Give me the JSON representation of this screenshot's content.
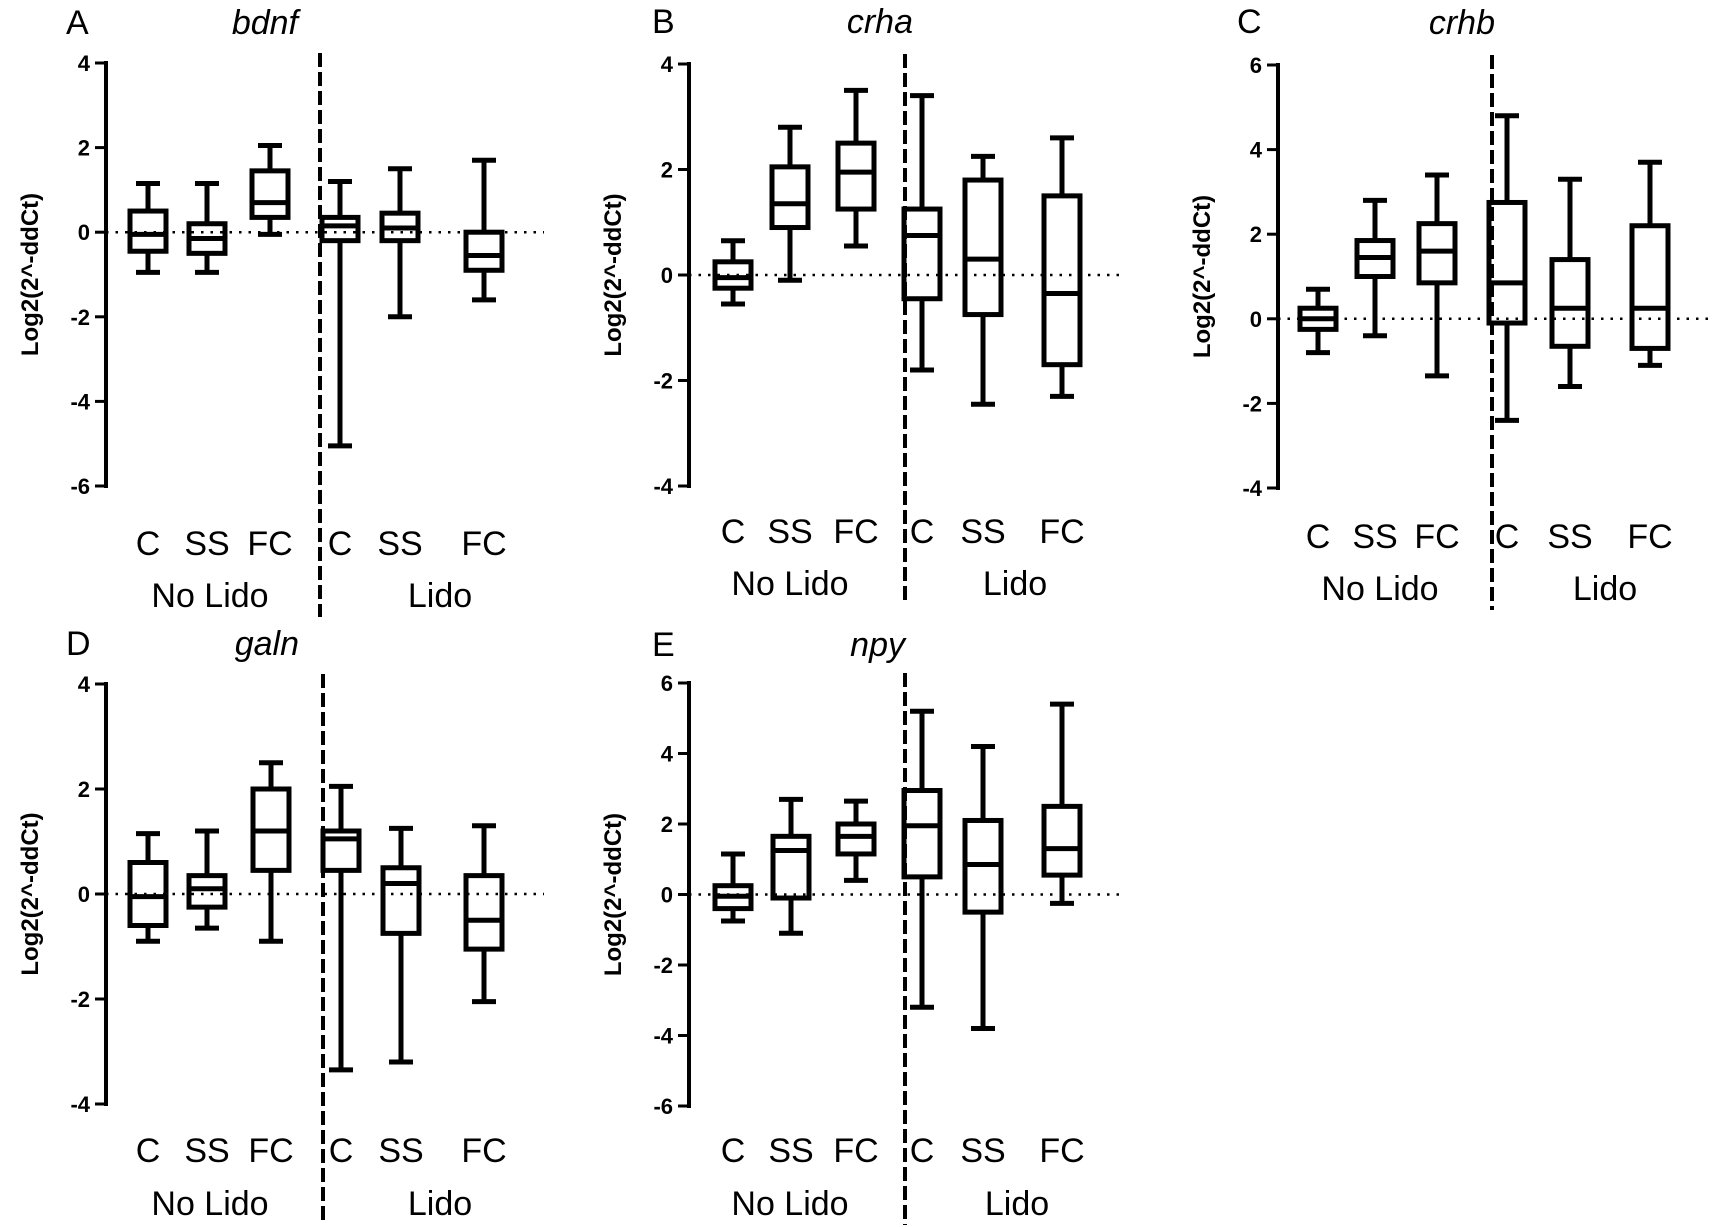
{
  "figure": {
    "ylabel": "Log2(2^-ddCt)",
    "categories": [
      "C",
      "SS",
      "FC",
      "C",
      "SS",
      "FC"
    ],
    "groups": [
      "No Lido",
      "Lido"
    ]
  },
  "chart_data": [
    {
      "type": "boxplot",
      "panel": "A",
      "title": "bdnf",
      "ylabel": "Log2(2^-ddCt)",
      "ylim": [
        -6,
        4
      ],
      "yticks": [
        -6,
        -4,
        -2,
        0,
        2,
        4
      ],
      "reference_line": 0,
      "categories": [
        "C",
        "SS",
        "FC",
        "C",
        "SS",
        "FC"
      ],
      "groups": [
        {
          "label": "No Lido",
          "categories": 3
        },
        {
          "label": "Lido",
          "categories": 3
        }
      ],
      "boxes": [
        {
          "min": -0.95,
          "q1": -0.45,
          "median": -0.05,
          "q3": 0.5,
          "max": 1.15
        },
        {
          "min": -0.95,
          "q1": -0.5,
          "median": -0.15,
          "q3": 0.2,
          "max": 1.15
        },
        {
          "min": -0.05,
          "q1": 0.35,
          "median": 0.7,
          "q3": 1.45,
          "max": 2.05
        },
        {
          "min": -5.05,
          "q1": -0.2,
          "median": 0.15,
          "q3": 0.35,
          "max": 1.2
        },
        {
          "min": -2.0,
          "q1": -0.2,
          "median": 0.1,
          "q3": 0.45,
          "max": 1.5
        },
        {
          "min": -1.6,
          "q1": -0.9,
          "median": -0.55,
          "q3": 0.0,
          "max": 1.7
        }
      ]
    },
    {
      "type": "boxplot",
      "panel": "B",
      "title": "crha",
      "ylabel": "Log2(2^-ddCt)",
      "ylim": [
        -4,
        4
      ],
      "yticks": [
        -4,
        -2,
        0,
        2,
        4
      ],
      "reference_line": 0,
      "categories": [
        "C",
        "SS",
        "FC",
        "C",
        "SS",
        "FC"
      ],
      "groups": [
        {
          "label": "No Lido",
          "categories": 3
        },
        {
          "label": "Lido",
          "categories": 3
        }
      ],
      "boxes": [
        {
          "min": -0.55,
          "q1": -0.25,
          "median": -0.05,
          "q3": 0.25,
          "max": 0.65
        },
        {
          "min": -0.1,
          "q1": 0.9,
          "median": 1.35,
          "q3": 2.05,
          "max": 2.8
        },
        {
          "min": 0.55,
          "q1": 1.25,
          "median": 1.95,
          "q3": 2.5,
          "max": 3.5
        },
        {
          "min": -1.8,
          "q1": -0.45,
          "median": 0.75,
          "q3": 1.25,
          "max": 3.4
        },
        {
          "min": -2.45,
          "q1": -0.75,
          "median": 0.3,
          "q3": 1.8,
          "max": 2.25
        },
        {
          "min": -2.3,
          "q1": -1.7,
          "median": -0.35,
          "q3": 1.5,
          "max": 2.6
        }
      ]
    },
    {
      "type": "boxplot",
      "panel": "C",
      "title": "crhb",
      "ylabel": "Log2(2^-ddCt)",
      "ylim": [
        -4,
        6
      ],
      "yticks": [
        -4,
        -2,
        0,
        2,
        4,
        6
      ],
      "reference_line": 0,
      "categories": [
        "C",
        "SS",
        "FC",
        "C",
        "SS",
        "FC"
      ],
      "groups": [
        {
          "label": "No Lido",
          "categories": 3
        },
        {
          "label": "Lido",
          "categories": 3
        }
      ],
      "boxes": [
        {
          "min": -0.8,
          "q1": -0.25,
          "median": 0.0,
          "q3": 0.25,
          "max": 0.7
        },
        {
          "min": -0.4,
          "q1": 1.0,
          "median": 1.45,
          "q3": 1.85,
          "max": 2.8
        },
        {
          "min": -1.35,
          "q1": 0.85,
          "median": 1.6,
          "q3": 2.25,
          "max": 3.4
        },
        {
          "min": -2.4,
          "q1": -0.1,
          "median": 0.85,
          "q3": 2.75,
          "max": 4.8
        },
        {
          "min": -1.6,
          "q1": -0.65,
          "median": 0.25,
          "q3": 1.4,
          "max": 3.3
        },
        {
          "min": -1.1,
          "q1": -0.7,
          "median": 0.25,
          "q3": 2.2,
          "max": 3.7
        }
      ]
    },
    {
      "type": "boxplot",
      "panel": "D",
      "title": "galn",
      "ylabel": "Log2(2^-ddCt)",
      "ylim": [
        -4,
        4
      ],
      "yticks": [
        -4,
        -2,
        0,
        2,
        4
      ],
      "reference_line": 0,
      "categories": [
        "C",
        "SS",
        "FC",
        "C",
        "SS",
        "FC"
      ],
      "groups": [
        {
          "label": "No Lido",
          "categories": 3
        },
        {
          "label": "Lido",
          "categories": 3
        }
      ],
      "boxes": [
        {
          "min": -0.9,
          "q1": -0.6,
          "median": -0.05,
          "q3": 0.6,
          "max": 1.15
        },
        {
          "min": -0.65,
          "q1": -0.25,
          "median": 0.1,
          "q3": 0.35,
          "max": 1.2
        },
        {
          "min": -0.9,
          "q1": 0.45,
          "median": 1.2,
          "q3": 2.0,
          "max": 2.5
        },
        {
          "min": -3.35,
          "q1": 0.45,
          "median": 1.05,
          "q3": 1.2,
          "max": 2.05
        },
        {
          "min": -3.2,
          "q1": -0.75,
          "median": 0.2,
          "q3": 0.5,
          "max": 1.25
        },
        {
          "min": -2.05,
          "q1": -1.05,
          "median": -0.5,
          "q3": 0.35,
          "max": 1.3
        }
      ]
    },
    {
      "type": "boxplot",
      "panel": "E",
      "title": "npy",
      "ylabel": "Log2(2^-ddCt)",
      "ylim": [
        -6,
        6
      ],
      "yticks": [
        -6,
        -4,
        -2,
        0,
        2,
        4,
        6
      ],
      "reference_line": 0,
      "categories": [
        "C",
        "SS",
        "FC",
        "C",
        "SS",
        "FC"
      ],
      "groups": [
        {
          "label": "No Lido",
          "categories": 3
        },
        {
          "label": "Lido",
          "categories": 3
        }
      ],
      "boxes": [
        {
          "min": -0.75,
          "q1": -0.4,
          "median": -0.05,
          "q3": 0.25,
          "max": 1.15
        },
        {
          "min": -1.1,
          "q1": -0.1,
          "median": 1.25,
          "q3": 1.65,
          "max": 2.7
        },
        {
          "min": 0.4,
          "q1": 1.15,
          "median": 1.65,
          "q3": 2.0,
          "max": 2.65
        },
        {
          "min": -3.2,
          "q1": 0.5,
          "median": 1.95,
          "q3": 2.95,
          "max": 5.2
        },
        {
          "min": -3.8,
          "q1": -0.5,
          "median": 0.85,
          "q3": 2.1,
          "max": 4.2
        },
        {
          "min": -0.25,
          "q1": 0.55,
          "median": 1.3,
          "q3": 2.5,
          "max": 5.4
        }
      ]
    }
  ]
}
